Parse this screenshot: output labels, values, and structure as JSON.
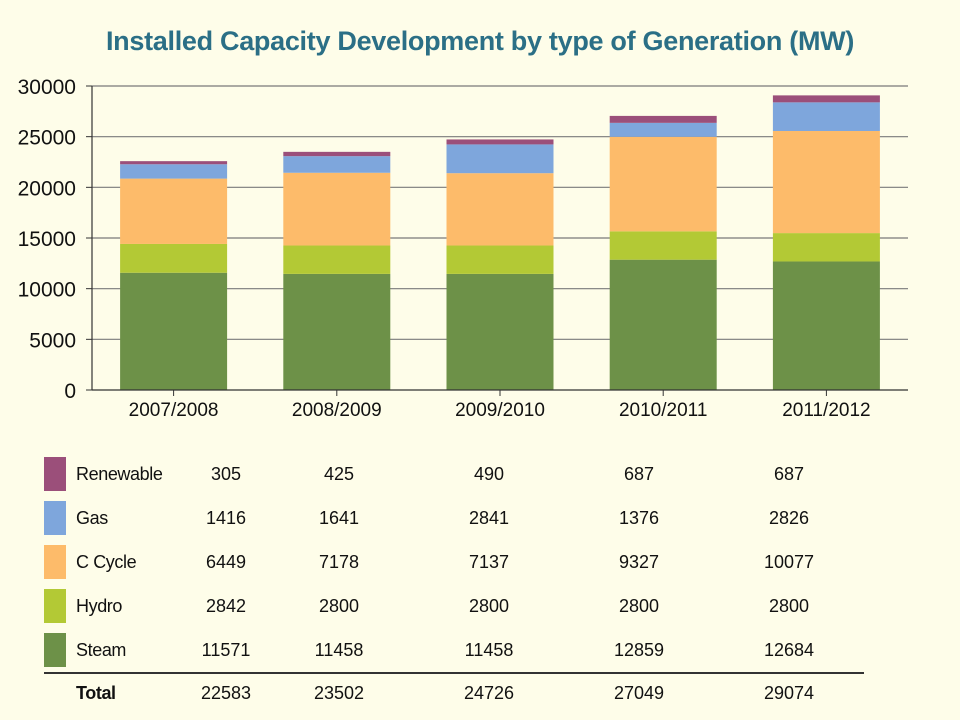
{
  "chart_data": {
    "type": "bar",
    "stacked": true,
    "title": "Installed Capacity Development by type of Generation (MW)",
    "xlabel": "",
    "ylabel": "",
    "ylim": [
      0,
      30000
    ],
    "yticks": [
      "0",
      "5000",
      "10000",
      "15000",
      "20000",
      "25000",
      "30000"
    ],
    "grid": true,
    "categories": [
      "2007/2008",
      "2008/2009",
      "2009/2010",
      "2010/2011",
      "2011/2012"
    ],
    "series": [
      {
        "name": "Renewable",
        "color": "#9b4f7a",
        "values": [
          305,
          425,
          490,
          687,
          687
        ]
      },
      {
        "name": "Gas",
        "color": "#7ea6dc",
        "values": [
          1416,
          1641,
          2841,
          1376,
          2826
        ]
      },
      {
        "name": "C Cycle",
        "color": "#fdbb6a",
        "values": [
          6449,
          7178,
          7137,
          9327,
          10077
        ]
      },
      {
        "name": "Hydro",
        "color": "#b3c935",
        "values": [
          2842,
          2800,
          2800,
          2800,
          2800
        ]
      },
      {
        "name": "Steam",
        "color": "#6d9148",
        "values": [
          11571,
          11458,
          11458,
          12859,
          12684
        ]
      }
    ],
    "totals": {
      "label": "Total",
      "values": [
        22583,
        23502,
        24726,
        27049,
        29074
      ]
    }
  }
}
